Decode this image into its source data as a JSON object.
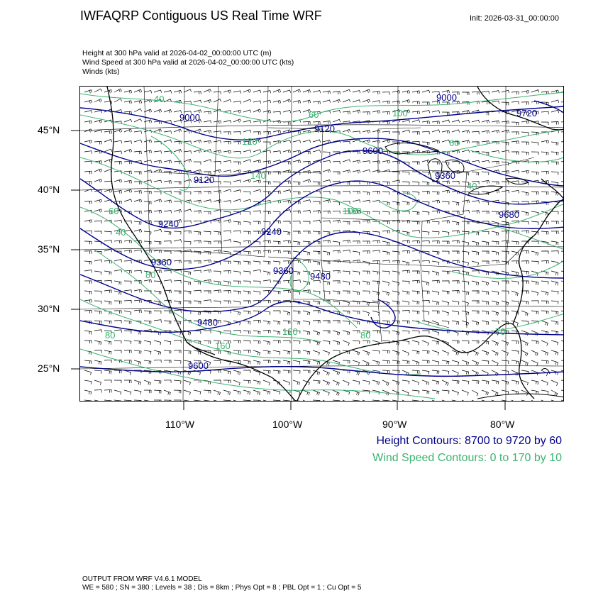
{
  "header": {
    "title": "IWFAQRP Contiguous US Real Time WRF",
    "init": "Init: 2026-03-31_00:00:00",
    "subtitle_lines": [
      "Height at 300 hPa valid at 2026-04-02_00:00:00 UTC   (m)",
      "Wind Speed at 300 hPa valid at 2026-04-02_00:00:00 UTC   (kts)",
      "Winds   (kts)"
    ]
  },
  "map": {
    "lat_labels": [
      "45°N",
      "40°N",
      "35°N",
      "30°N",
      "25°N"
    ],
    "lon_labels": [
      "110°W",
      "100°W",
      "90°W",
      "80°W"
    ],
    "height_contour_labels": [
      "9000",
      "9120",
      "9240",
      "9360",
      "9480",
      "9600",
      "9000",
      "9120",
      "9240",
      "9360",
      "9480",
      "9360",
      "9600",
      "9720",
      "9680"
    ],
    "wind_speed_contour_labels": [
      "40",
      "60",
      "100",
      "140",
      "160",
      "120",
      "80",
      "60",
      "40",
      "160",
      "120",
      "80",
      "60",
      "40",
      "70",
      "100",
      "80"
    ]
  },
  "legend": {
    "height_contours": "Height Contours: 8700 to 9720 by 60",
    "wind_speed_contours": "Wind Speed Contours: 0 to 170 by 10"
  },
  "colors": {
    "height_contour": "#00008b",
    "wind_contour": "#3cb371",
    "boundaries": "#000000"
  },
  "footer": {
    "line1": "OUTPUT FROM WRF V4.6.1 MODEL",
    "line2": "WE = 580 ; SN = 380 ; Levels = 38 ; Dis = 8km ; Phys Opt = 8 ; PBL Opt = 1 ; Cu Opt = 5"
  }
}
